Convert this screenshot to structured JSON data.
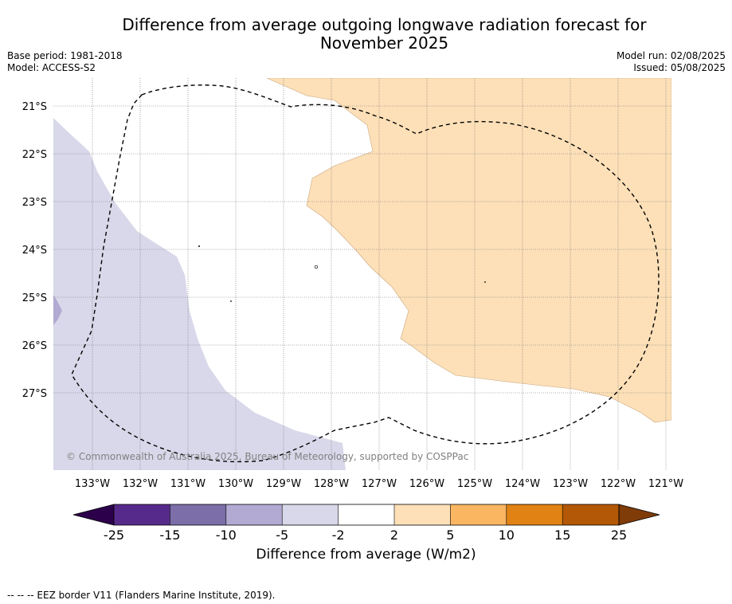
{
  "header": {
    "title_line1": "Difference from average outgoing longwave radiation forecast for",
    "title_line2": "November 2025",
    "base_period": "Base period: 1981-2018",
    "model": "Model: ACCESS-S2",
    "model_run": "Model run: 02/08/2025",
    "issued": "Issued: 05/08/2025"
  },
  "map": {
    "lat_labels": [
      "21°S",
      "22°S",
      "23°S",
      "24°S",
      "25°S",
      "26°S",
      "27°S"
    ],
    "lon_labels": [
      "133°W",
      "132°W",
      "131°W",
      "130°W",
      "129°W",
      "128°W",
      "127°W",
      "126°W",
      "125°W",
      "124°W",
      "123°W",
      "122°W",
      "121°W"
    ],
    "copyright": "© Commonwealth of Australia 2025, Bureau of Meteorology, supported by COSPPac",
    "regions": [
      {
        "category": "-5 to -2",
        "color": "#d8d8ea"
      },
      {
        "category": "2 to 5",
        "color": "#fde0b8"
      },
      {
        "category": "-10 to -5",
        "color": "#b2aad2"
      }
    ],
    "eez_border": "dashed"
  },
  "colorbar": {
    "ticks": [
      "-25",
      "-15",
      "-10",
      "-5",
      "-2",
      "2",
      "5",
      "10",
      "15",
      "25"
    ],
    "colors": [
      "#562a8a",
      "#7c6ea9",
      "#b2aad2",
      "#d8d8ea",
      "#ffffff",
      "#fde0b8",
      "#fbb662",
      "#e08214",
      "#b35806"
    ],
    "low_extend_color": "#2d004b",
    "high_extend_color": "#7f3b08",
    "label": "Difference from average (W/m2)"
  },
  "footnote": "--  --  -- EEZ border V11 (Flanders Marine Institute, 2019)."
}
